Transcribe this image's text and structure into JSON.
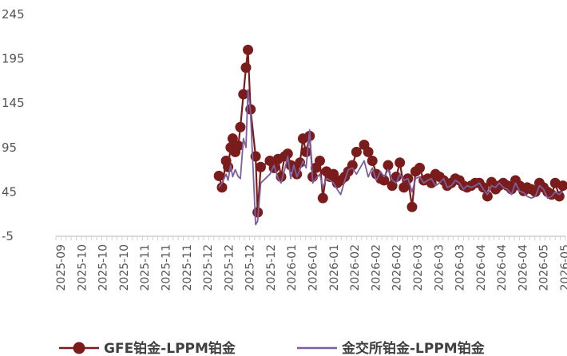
{
  "chart_data": {
    "type": "line",
    "title": "",
    "xlabel": "",
    "ylabel": "",
    "ylim": [
      -5,
      245
    ],
    "yticks": [
      -5,
      45,
      95,
      145,
      195,
      245
    ],
    "grid": false,
    "legend_position": "bottom",
    "x_tick_labels": [
      "2025-09",
      "2025-10",
      "2025-10",
      "2025-10",
      "2025-11",
      "2025-11",
      "2025-11",
      "2025-12",
      "2025-12",
      "2025-12",
      "2025-12",
      "2026-01",
      "2026-01",
      "2026-01",
      "2026-02",
      "2026-02",
      "2026-02",
      "2026-03",
      "2026-03",
      "2026-03",
      "2026-04",
      "2026-04",
      "2026-04",
      "2026-05",
      "2026-05"
    ],
    "x_domain": [
      0,
      100
    ],
    "series": [
      {
        "name": "GFE铂金-LPPM铂金",
        "color": "#7b1c1c",
        "marker": "circle",
        "x": [
          32.0,
          32.6,
          33.4,
          33.8,
          34.3,
          34.7,
          35.2,
          35.8,
          36.2,
          36.8,
          37.3,
          37.7,
          38.2,
          39.2,
          39.6,
          40.2,
          42.0,
          42.8,
          43.6,
          44.2,
          44.9,
          45.5,
          46.1,
          46.7,
          47.3,
          47.9,
          48.5,
          49.1,
          49.8,
          50.4,
          51.0,
          51.8,
          52.4,
          53.1,
          53.8,
          54.5,
          55.2,
          55.9,
          56.7,
          57.4,
          58.2,
          59.0,
          60.5,
          61.3,
          62.1,
          62.9,
          63.7,
          64.4,
          65.2,
          66.0,
          66.8,
          67.5,
          68.3,
          69.1,
          69.9,
          70.6,
          71.4,
          72.2,
          73.0,
          73.7,
          74.5,
          75.3,
          76.1,
          76.8,
          77.6,
          78.4,
          79.2,
          80.0,
          80.7,
          81.5,
          82.3,
          83.1,
          83.9,
          84.7,
          85.5,
          86.3,
          87.0,
          87.8,
          88.6,
          89.4,
          90.2,
          91.0,
          91.8,
          92.5,
          93.3,
          94.1,
          94.9,
          95.7,
          96.5,
          97.3,
          98.0,
          98.8,
          99.5
        ],
        "values": [
          63,
          50,
          80,
          73,
          95,
          105,
          90,
          97,
          118,
          155,
          185,
          205,
          138,
          85,
          22,
          73,
          80,
          72,
          82,
          62,
          85,
          88,
          75,
          72,
          65,
          78,
          105,
          90,
          108,
          62,
          72,
          80,
          38,
          68,
          62,
          65,
          55,
          58,
          62,
          68,
          75,
          90,
          98,
          90,
          80,
          65,
          60,
          58,
          75,
          52,
          62,
          78,
          50,
          60,
          28,
          68,
          72,
          58,
          60,
          55,
          65,
          62,
          58,
          52,
          55,
          60,
          58,
          52,
          50,
          52,
          55,
          55,
          50,
          40,
          56,
          48,
          52,
          55,
          52,
          48,
          58,
          52,
          46,
          50,
          48,
          45,
          55,
          50,
          45,
          42,
          55,
          40,
          52
        ]
      },
      {
        "name": "金交所铂金-LPPM铂金",
        "color": "#7b5fa0",
        "marker": "none",
        "x": [
          32.0,
          32.6,
          33.4,
          33.8,
          34.3,
          34.7,
          35.2,
          35.8,
          36.2,
          36.8,
          37.3,
          37.7,
          38.2,
          39.2,
          39.6,
          40.2,
          42.0,
          42.8,
          43.6,
          44.2,
          44.9,
          45.5,
          46.1,
          46.7,
          47.3,
          47.9,
          48.5,
          49.1,
          49.8,
          50.4,
          51.0,
          51.8,
          52.4,
          53.1,
          53.8,
          54.5,
          55.2,
          55.9,
          56.7,
          57.4,
          58.2,
          59.0,
          60.5,
          61.3,
          62.1,
          62.9,
          63.7,
          64.4,
          65.2,
          66.0,
          66.8,
          67.5,
          68.3,
          69.1,
          69.9,
          70.6,
          71.4,
          72.2,
          73.0,
          73.7,
          74.5,
          75.3,
          76.1,
          76.8,
          77.6,
          78.4,
          79.2,
          80.0,
          80.7,
          81.5,
          82.3,
          83.1,
          83.9,
          84.7,
          85.5,
          86.3,
          87.0,
          87.8,
          88.6,
          89.4,
          90.2,
          91.0,
          91.8,
          92.5,
          93.3,
          94.1,
          94.9,
          95.7,
          96.5,
          97.3,
          98.0,
          98.8,
          99.5
        ],
        "values": [
          50,
          55,
          65,
          58,
          75,
          62,
          70,
          62,
          60,
          105,
          95,
          160,
          135,
          8,
          12,
          55,
          65,
          75,
          60,
          55,
          70,
          85,
          60,
          75,
          62,
          70,
          80,
          72,
          115,
          55,
          60,
          65,
          50,
          60,
          58,
          55,
          48,
          42,
          58,
          70,
          72,
          65,
          80,
          62,
          72,
          58,
          68,
          62,
          70,
          58,
          55,
          65,
          58,
          60,
          45,
          60,
          62,
          55,
          58,
          60,
          52,
          55,
          60,
          50,
          52,
          58,
          55,
          48,
          52,
          50,
          52,
          55,
          48,
          42,
          52,
          50,
          55,
          50,
          48,
          42,
          55,
          46,
          44,
          40,
          38,
          40,
          52,
          48,
          38,
          40,
          45,
          42,
          46
        ]
      }
    ]
  }
}
